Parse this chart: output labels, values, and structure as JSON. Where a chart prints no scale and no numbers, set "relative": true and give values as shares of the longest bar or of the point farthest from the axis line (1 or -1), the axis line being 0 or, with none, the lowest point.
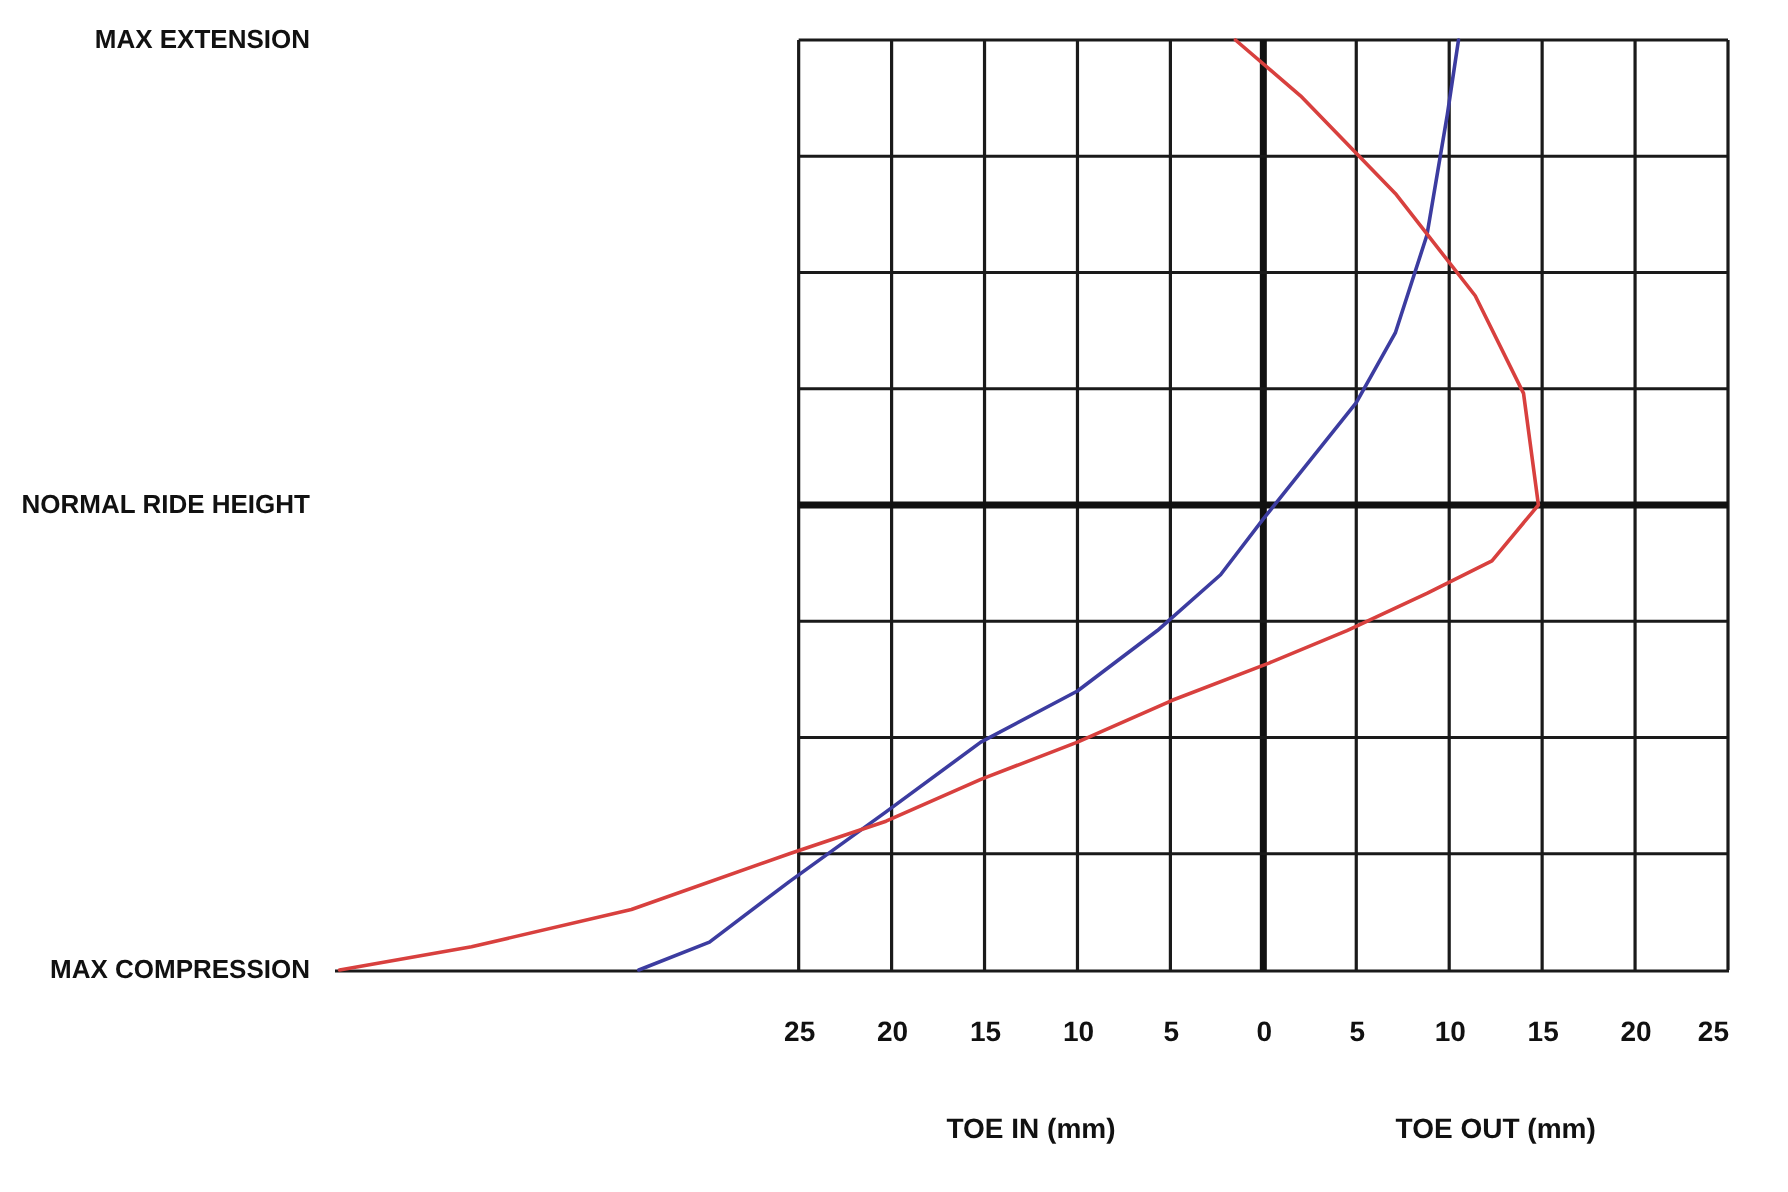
{
  "chart_data": {
    "type": "line",
    "relative": true,
    "xlim": [
      -50,
      25
    ],
    "xticks": [
      {
        "value": -25,
        "label": "25"
      },
      {
        "value": -20,
        "label": "20"
      },
      {
        "value": -15,
        "label": "15"
      },
      {
        "value": -10,
        "label": "10"
      },
      {
        "value": -5,
        "label": "5"
      },
      0,
      5,
      10,
      15,
      20,
      25
    ],
    "grid": "x",
    "line_style": "solid",
    "series": [
      {
        "color": "#3c3ca0",
        "x": [
          10.5,
          9.9,
          8.8,
          7.1,
          5,
          2,
          0,
          -2.3,
          -5.7,
          -10,
          -15.2,
          -20.3,
          -25.5,
          -29.8,
          -33.6
        ],
        "values": [
          1,
          0.84,
          0.58,
          0.37,
          0.22,
          0.07,
          -0.03,
          -0.15,
          -0.27,
          -0.4,
          -0.51,
          -0.66,
          -0.81,
          -0.94,
          -1
        ]
      },
      {
        "color": "#d8403e",
        "x": [
          -1.5,
          2,
          7.1,
          11.4,
          14,
          14.8,
          12.3,
          8.8,
          4.5,
          0.3,
          -4.9,
          -10,
          -15.2,
          -20.3,
          -25.5,
          -34,
          -42.6,
          -49.7
        ],
        "values": [
          1,
          0.88,
          0.67,
          0.45,
          0.24,
          0,
          -0.12,
          -0.19,
          -0.27,
          -0.34,
          -0.42,
          -0.51,
          -0.59,
          -0.68,
          -0.75,
          -0.87,
          -0.95,
          -1
        ]
      }
    ],
    "ref_lines": [
      {
        "axis": "x",
        "value": 0,
        "color": "#111111"
      },
      {
        "axis": "y",
        "value": 0,
        "color": "#111111"
      },
      {
        "axis": "y",
        "value": 0.75,
        "color": "#1a1a1a"
      },
      {
        "axis": "y",
        "value": 0.5,
        "color": "#1a1a1a"
      },
      {
        "axis": "y",
        "value": 0.25,
        "color": "#1a1a1a"
      },
      {
        "axis": "y",
        "value": -0.25,
        "color": "#1a1a1a"
      },
      {
        "axis": "y",
        "value": -0.5,
        "color": "#1a1a1a"
      },
      {
        "axis": "y",
        "value": -0.75,
        "color": "#1a1a1a"
      }
    ],
    "annotations": [
      "MAX EXTENSION",
      "NORMAL RIDE HEIGHT",
      "MAX COMPRESSION",
      "TOE IN (mm)",
      "TOE OUT (mm)"
    ]
  }
}
